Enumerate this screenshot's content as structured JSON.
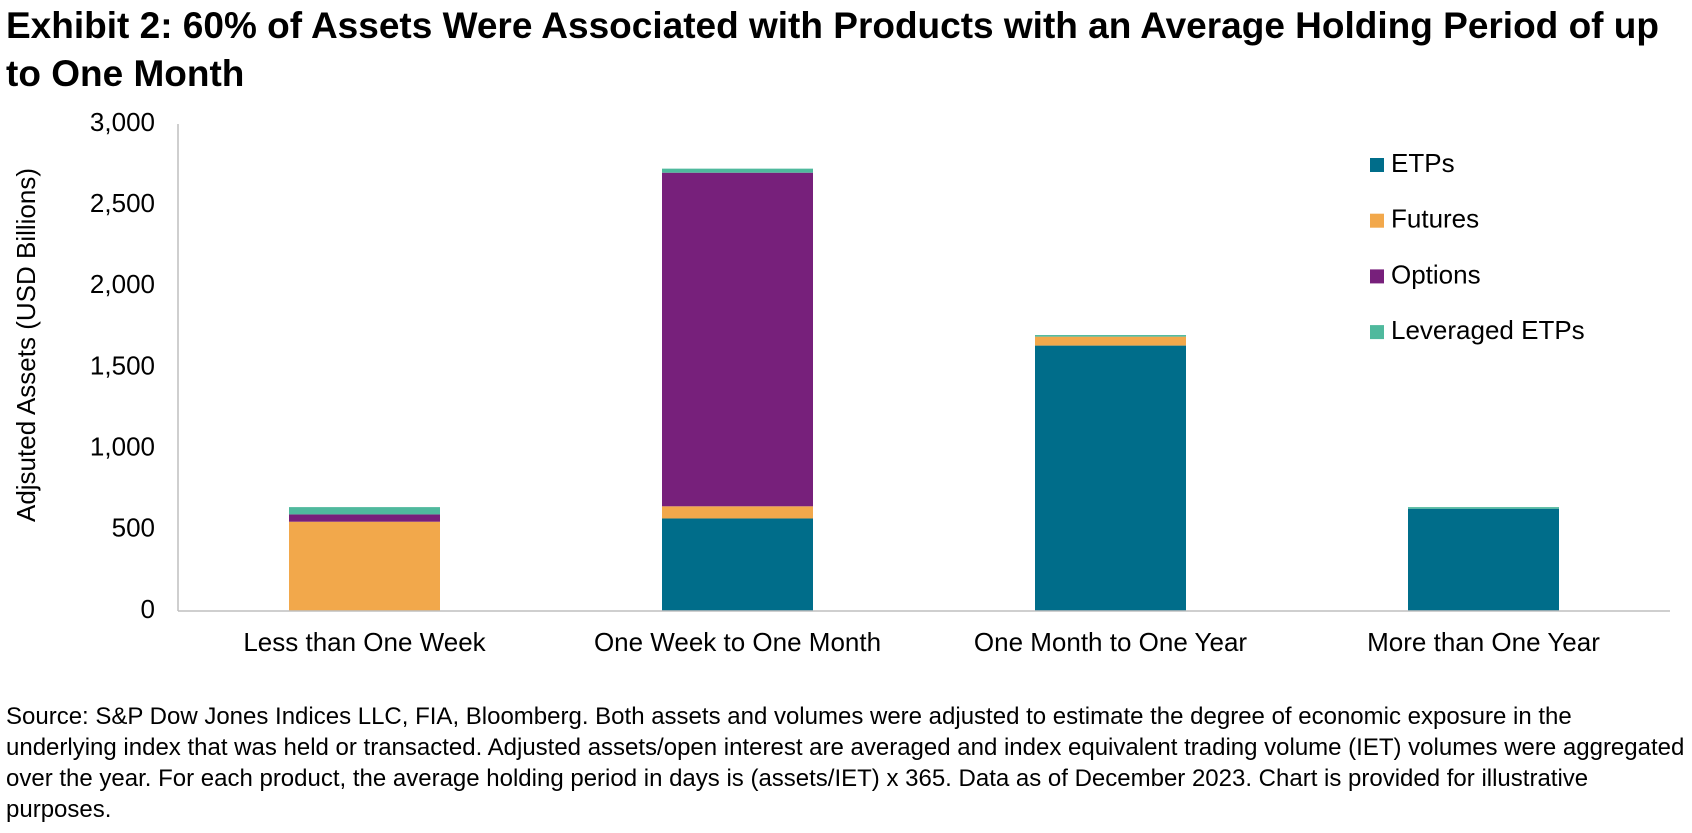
{
  "chart_data": {
    "type": "stacked_bar",
    "title": "Exhibit 2: 60% of Assets Were Associated with Products with an Average Holding Period of up to One Month",
    "y_label": "Adjsuted Assets (USD Billions)",
    "categories": [
      "Less than One Week",
      "One Week to One Month",
      "One Month to One Year",
      "More than One Year"
    ],
    "series": [
      {
        "name": "ETPs",
        "color": "#006d8a",
        "values": [
          0,
          570,
          1635,
          630
        ]
      },
      {
        "name": "Futures",
        "color": "#f2a84b",
        "values": [
          550,
          75,
          55,
          0
        ]
      },
      {
        "name": "Options",
        "color": "#77207b",
        "values": [
          45,
          2055,
          0,
          0
        ]
      },
      {
        "name": "Leveraged ETPs",
        "color": "#4fb99d",
        "values": [
          45,
          25,
          10,
          10
        ]
      }
    ],
    "ylim": [
      0,
      3000
    ],
    "yticks": [
      0,
      500,
      {
        "value": 1000,
        "label": "1,000"
      },
      {
        "value": 1500,
        "label": "1,500"
      },
      {
        "value": 2000,
        "label": "2,000"
      },
      {
        "value": 2500,
        "label": "2,500"
      },
      {
        "value": 3000,
        "label": "3,000"
      }
    ],
    "grid": false,
    "legend": "top-right",
    "source": "Source: S&P Dow Jones Indices LLC, FIA, Bloomberg. Both assets and volumes were adjusted to estimate the degree of economic exposure in the underlying index that was held or transacted. Adjusted assets/open interest are averaged and index equivalent trading volume (IET) volumes were aggregated over the year. For each product, the average holding period in days is (assets/IET) x 365. Data as of December 2023. Chart is provided for illustrative purposes."
  }
}
